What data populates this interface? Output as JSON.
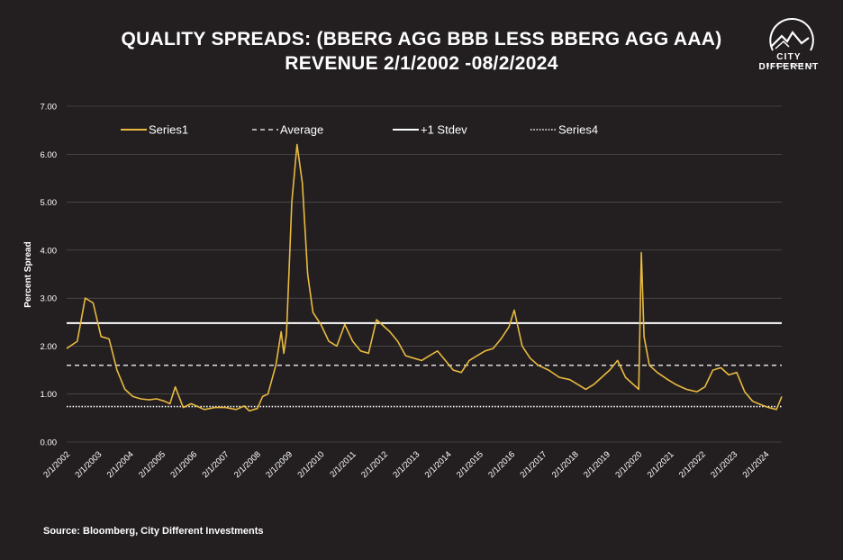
{
  "title_line1": "QUALITY SPREADS: (BBERG AGG BBB LESS BBERG AGG AAA)",
  "title_line2": "REVENUE 2/1/2002 -08/2/2024",
  "logo": {
    "name": "CITY DIFFERENT",
    "sub": "INVESTMENTS",
    "icon": "mountain-circle-icon"
  },
  "source": "Source: Bloomberg, City Different Investments",
  "colors": {
    "background": "#231f20",
    "series1": "#e8b940",
    "lines": "#ffffff",
    "grid": "#5a5a5a"
  },
  "chart_data": {
    "type": "line",
    "title": "QUALITY SPREADS: (BBERG AGG BBB LESS BBERG AGG AAA) REVENUE 2/1/2002 -08/2/2024",
    "ylabel": "Percent Spread",
    "xlabel": "",
    "ylim": [
      0,
      7
    ],
    "yticks": [
      "0.00",
      "1.00",
      "2.00",
      "3.00",
      "4.00",
      "5.00",
      "6.00",
      "7.00"
    ],
    "xticks": [
      "2/1/2002",
      "2/1/2003",
      "2/1/2004",
      "2/1/2005",
      "2/1/2006",
      "2/1/2007",
      "2/1/2008",
      "2/1/2009",
      "2/1/2010",
      "2/1/2011",
      "2/1/2012",
      "2/1/2013",
      "2/1/2014",
      "2/1/2015",
      "2/1/2016",
      "2/1/2017",
      "2/1/2018",
      "2/1/2019",
      "2/1/2020",
      "2/1/2021",
      "2/1/2022",
      "2/1/2023",
      "2/1/2024"
    ],
    "grid": "horizontal",
    "legend_placement": "top",
    "series": [
      {
        "name": "Series1",
        "style": "solid",
        "x": [
          "2002-02",
          "2002-06",
          "2002-09",
          "2002-12",
          "2003-03",
          "2003-06",
          "2003-09",
          "2003-12",
          "2004-03",
          "2004-06",
          "2004-09",
          "2004-12",
          "2005-03",
          "2005-05",
          "2005-07",
          "2005-10",
          "2006-01",
          "2006-06",
          "2006-10",
          "2007-02",
          "2007-06",
          "2007-09",
          "2007-11",
          "2008-02",
          "2008-04",
          "2008-06",
          "2008-09",
          "2008-11",
          "2008-12",
          "2009-01",
          "2009-03",
          "2009-05",
          "2009-07",
          "2009-09",
          "2009-11",
          "2010-02",
          "2010-05",
          "2010-08",
          "2010-11",
          "2011-02",
          "2011-05",
          "2011-08",
          "2011-11",
          "2012-01",
          "2012-04",
          "2012-07",
          "2012-10",
          "2013-01",
          "2013-04",
          "2013-07",
          "2013-10",
          "2014-01",
          "2014-04",
          "2014-07",
          "2014-10",
          "2015-01",
          "2015-04",
          "2015-07",
          "2015-10",
          "2016-01",
          "2016-03",
          "2016-06",
          "2016-09",
          "2016-12",
          "2017-04",
          "2017-08",
          "2017-12",
          "2018-03",
          "2018-06",
          "2018-09",
          "2018-12",
          "2019-03",
          "2019-06",
          "2019-09",
          "2019-12",
          "2020-02",
          "2020-03",
          "2020-04",
          "2020-06",
          "2020-09",
          "2021-01",
          "2021-04",
          "2021-08",
          "2021-12",
          "2022-03",
          "2022-06",
          "2022-09",
          "2022-12",
          "2023-03",
          "2023-06",
          "2023-09",
          "2023-12",
          "2024-03",
          "2024-06",
          "2024-08"
        ],
        "values": [
          1.95,
          2.1,
          3.0,
          2.9,
          2.2,
          2.15,
          1.5,
          1.1,
          0.95,
          0.9,
          0.88,
          0.9,
          0.85,
          0.8,
          1.15,
          0.72,
          0.8,
          0.68,
          0.72,
          0.72,
          0.68,
          0.75,
          0.65,
          0.7,
          0.95,
          1.0,
          1.6,
          2.3,
          1.85,
          2.25,
          5.0,
          6.2,
          5.4,
          3.5,
          2.7,
          2.45,
          2.1,
          2.0,
          2.45,
          2.1,
          1.9,
          1.85,
          2.55,
          2.45,
          2.3,
          2.1,
          1.8,
          1.75,
          1.7,
          1.8,
          1.9,
          1.7,
          1.5,
          1.45,
          1.7,
          1.8,
          1.9,
          1.95,
          2.15,
          2.4,
          2.75,
          2.0,
          1.75,
          1.6,
          1.5,
          1.35,
          1.3,
          1.2,
          1.1,
          1.2,
          1.35,
          1.5,
          1.7,
          1.35,
          1.2,
          1.1,
          3.95,
          2.2,
          1.6,
          1.45,
          1.3,
          1.2,
          1.1,
          1.05,
          1.15,
          1.5,
          1.55,
          1.4,
          1.45,
          1.05,
          0.85,
          0.78,
          0.72,
          0.68,
          0.95
        ]
      },
      {
        "name": "Average",
        "style": "dashed",
        "value": 1.6
      },
      {
        "name": "+1 Stdev",
        "style": "solid-white",
        "value": 2.48
      },
      {
        "name": "Series4",
        "style": "dotted",
        "value": 0.74
      }
    ]
  }
}
